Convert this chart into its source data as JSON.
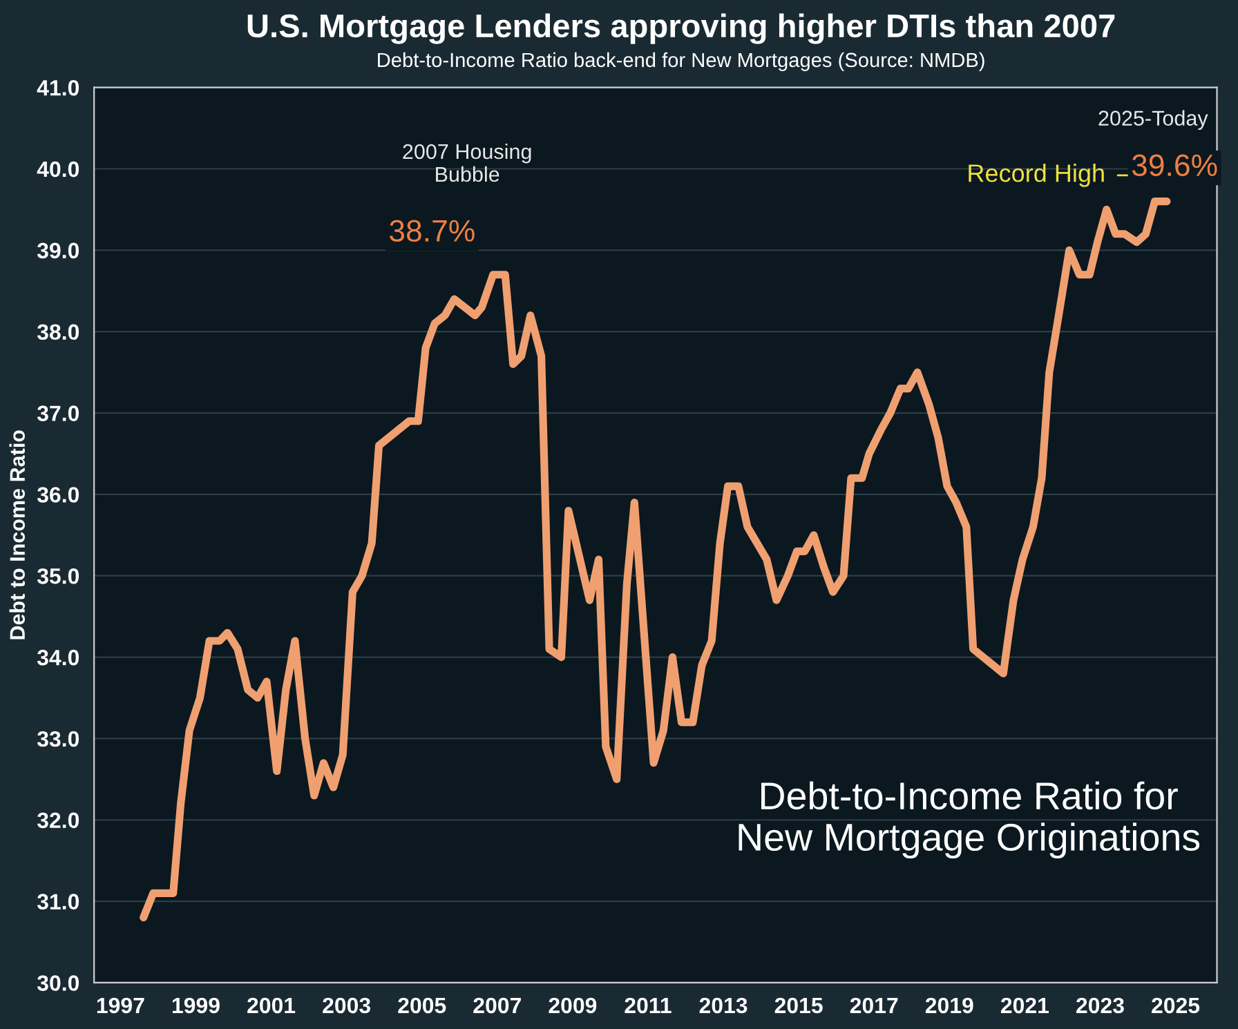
{
  "chart_data": {
    "type": "line",
    "title": "U.S. Mortgage Lenders approving higher DTIs than 2007",
    "subtitle": "Debt-to-Income Ratio back-end for New Mortgages (Source: NMDB)",
    "ylabel": "Debt to Income Ratio",
    "series": [
      {
        "color": "#f0a070",
        "x": [
          1997.61,
          1997.87,
          1998.4,
          1998.6,
          1998.83,
          1999.11,
          1999.36,
          1999.63,
          1999.84,
          2000.11,
          2000.38,
          2000.64,
          2000.88,
          2001.15,
          2001.39,
          2001.63,
          2001.9,
          2002.14,
          2002.39,
          2002.65,
          2002.9,
          2003.16,
          2003.41,
          2003.67,
          2003.86,
          2004.66,
          2004.9,
          2005.1,
          2005.34,
          2005.61,
          2005.86,
          2006.41,
          2006.59,
          2006.89,
          2007.21,
          2007.42,
          2007.64,
          2007.88,
          2008.17,
          2008.38,
          2008.7,
          2008.89,
          2009.45,
          2009.69,
          2009.88,
          2010.17,
          2010.44,
          2010.64,
          2011.15,
          2011.41,
          2011.65,
          2011.89,
          2012.19,
          2012.43,
          2012.69,
          2012.91,
          2013.12,
          2013.4,
          2013.64,
          2014.15,
          2014.41,
          2014.71,
          2014.95,
          2015.16,
          2015.4,
          2015.67,
          2015.91,
          2016.19,
          2016.39,
          2016.68,
          2016.87,
          2017.19,
          2017.43,
          2017.7,
          2017.91,
          2018.15,
          2018.46,
          2018.7,
          2018.94,
          2019.18,
          2019.45,
          2019.63,
          2020.43,
          2020.7,
          2020.94,
          2021.22,
          2021.45,
          2021.65,
          2021.9,
          2022.18,
          2022.45,
          2022.72,
          2022.93,
          2023.17,
          2023.41,
          2023.65,
          2023.97,
          2024.21,
          2024.45,
          2024.77
        ],
        "values": [
          30.8,
          31.1,
          31.1,
          32.2,
          33.1,
          33.5,
          34.2,
          34.2,
          34.3,
          34.1,
          33.6,
          33.5,
          33.7,
          32.6,
          33.6,
          34.2,
          33.0,
          32.3,
          32.7,
          32.4,
          32.8,
          34.8,
          35.0,
          35.4,
          36.6,
          36.9,
          36.9,
          37.8,
          38.1,
          38.2,
          38.4,
          38.2,
          38.3,
          38.7,
          38.7,
          37.6,
          37.7,
          38.2,
          37.7,
          34.1,
          34.0,
          35.8,
          34.7,
          35.2,
          32.9,
          32.5,
          34.9,
          35.9,
          32.7,
          33.1,
          34.0,
          33.2,
          33.2,
          33.9,
          34.2,
          35.4,
          36.1,
          36.1,
          35.6,
          35.2,
          34.7,
          35.0,
          35.3,
          35.3,
          35.5,
          35.1,
          34.8,
          35.0,
          36.2,
          36.2,
          36.5,
          36.8,
          37.0,
          37.3,
          37.3,
          37.5,
          37.1,
          36.7,
          36.1,
          35.9,
          35.6,
          34.1,
          33.8,
          34.7,
          35.2,
          35.6,
          36.2,
          37.5,
          38.2,
          39.0,
          38.7,
          38.7,
          39.1,
          39.5,
          39.2,
          39.2,
          39.1,
          39.2,
          39.6,
          39.6
        ]
      }
    ],
    "xlim": [
      1996.3,
      2026.1
    ],
    "xticks": [
      1997,
      1999,
      2001,
      2003,
      2005,
      2007,
      2009,
      2011,
      2013,
      2015,
      2017,
      2019,
      2021,
      2023,
      2025
    ],
    "ylim": [
      30,
      41
    ],
    "yticks": [
      {
        "value": 30,
        "label": "30.0"
      },
      {
        "value": 31,
        "label": "31.0"
      },
      {
        "value": 32,
        "label": "32.0"
      },
      {
        "value": 33,
        "label": "33.0"
      },
      {
        "value": 34,
        "label": "34.0"
      },
      {
        "value": 35,
        "label": "35.0"
      },
      {
        "value": 36,
        "label": "36.0"
      },
      {
        "value": 37,
        "label": "37.0"
      },
      {
        "value": 38,
        "label": "38.0"
      },
      {
        "value": 39,
        "label": "39.0"
      },
      {
        "value": 40,
        "label": "40.0"
      },
      {
        "value": 41,
        "label": "41.0"
      }
    ],
    "grid": "y",
    "legend": false,
    "line_style": "solid",
    "annotations": [
      "2007 Housing\nBubble",
      {
        "text": "38.7%",
        "x": 2007.05,
        "y": 38.7
      },
      "2025-Today",
      "Record High",
      {
        "text": "39.6%",
        "x": 2024.77,
        "y": 39.6
      },
      "Debt-to-Income Ratio for\nNew Mortgage Originations"
    ]
  }
}
